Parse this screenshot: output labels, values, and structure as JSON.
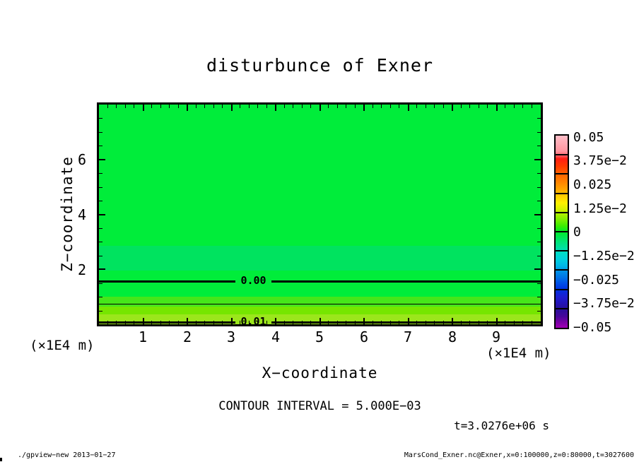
{
  "title": "disturbunce of Exner",
  "plot": {
    "x_axis": {
      "label": "X−coordinate",
      "unit_left": "(×1E4 m)",
      "unit_right": "(×1E4 m)",
      "ticks": [
        "1",
        "2",
        "3",
        "4",
        "5",
        "6",
        "7",
        "8",
        "9"
      ]
    },
    "y_axis": {
      "label": "Z−coordinate",
      "ticks": [
        "6",
        "4",
        "2"
      ]
    }
  },
  "colorbar": {
    "labels": [
      "0.05",
      "3.75e−2",
      "0.025",
      "1.25e−2",
      "0",
      "−1.25e−2",
      "−0.025",
      "−3.75e−2",
      "−0.05"
    ]
  },
  "annotations": {
    "contour_interval": "CONTOUR INTERVAL = 5.000E−03",
    "time": "t=3.0276e+06 s"
  },
  "footer": {
    "left": "./gpview−new  2013−01−27",
    "right": "MarsCond_Exner.nc@Exner,x=0:100000,z=0:80000,t=3027600"
  },
  "chart_data": {
    "type": "heatmap",
    "title": "disturbunce of Exner",
    "xlabel": "X−coordinate (×1E4 m)",
    "ylabel": "Z−coordinate (×1E4 m)",
    "xlim": [
      0,
      10
    ],
    "ylim": [
      0,
      8
    ],
    "x_ticks": [
      1,
      2,
      3,
      4,
      5,
      6,
      7,
      8,
      9
    ],
    "y_ticks": [
      2,
      4,
      6
    ],
    "grid": false,
    "legend_position": "colorbar-right",
    "variable": "disturbance of Exner function",
    "contour_interval": 0.005,
    "time_seconds": 3027600,
    "colorbar_range": [
      -0.05,
      0.05
    ],
    "colorbar_tick_values": [
      0.05,
      0.0375,
      0.025,
      0.0125,
      0,
      -0.0125,
      -0.025,
      -0.0375,
      -0.05
    ],
    "contours": [
      {
        "value": 0.0,
        "z_approx": 1.6,
        "style": "thick",
        "label": "0.00"
      },
      {
        "value": 0.005,
        "z_approx": 0.75,
        "style": "thin"
      },
      {
        "value": 0.01,
        "z_approx": 0.1,
        "style": "thick",
        "label": "0.01"
      }
    ],
    "field_bands": [
      {
        "z_range": [
          2.85,
          8.0
        ],
        "approx_value": "≈0 (slightly negative)",
        "color": "#00ED3A"
      },
      {
        "z_range": [
          1.95,
          2.85
        ],
        "approx_value": "-0.005 to -0.0025",
        "color": "#00E35F"
      },
      {
        "z_range": [
          1.0,
          1.95
        ],
        "approx_value": "-0.0025 to +0.0025",
        "color": "#00ED3A"
      },
      {
        "z_range": [
          0.65,
          1.0
        ],
        "approx_value": "0.0025 to 0.005",
        "color": "#46E61A"
      },
      {
        "z_range": [
          0.35,
          0.65
        ],
        "approx_value": "0.005 to 0.0075",
        "color": "#76E600"
      },
      {
        "z_range": [
          0.0,
          0.35
        ],
        "approx_value": "0.0075 to 0.0125",
        "color": "#9BE61C"
      }
    ]
  }
}
